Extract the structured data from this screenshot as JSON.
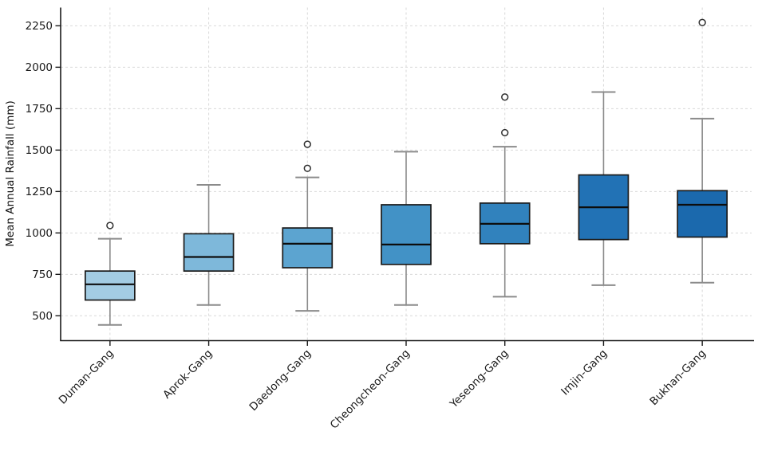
{
  "chart_data": {
    "type": "boxplot",
    "title": "",
    "xlabel": "",
    "ylabel": "Mean Annual Rainfall (mm)",
    "yticks": [
      500,
      750,
      1000,
      1250,
      1500,
      1750,
      2000,
      2250
    ],
    "ylim": [
      350,
      2360
    ],
    "grid": {
      "visible": true,
      "style": "dashed",
      "axes": "both"
    },
    "legend": null,
    "categories": [
      "Duman-Gang",
      "Aprok-Gang",
      "Daedong-Gang",
      "Cheongcheon-Gang",
      "Yeseong-Gang",
      "Imjin-Gang",
      "Bukhan-Gang"
    ],
    "boxes": [
      {
        "category": "Duman-Gang",
        "whisker_low": 445,
        "q1": 595,
        "median": 690,
        "q3": 770,
        "whisker_high": 965,
        "outliers": [
          1045
        ],
        "fill": "#a3cce3"
      },
      {
        "category": "Aprok-Gang",
        "whisker_low": 565,
        "q1": 770,
        "median": 855,
        "q3": 995,
        "whisker_high": 1290,
        "outliers": [],
        "fill": "#7eb8da"
      },
      {
        "category": "Daedong-Gang",
        "whisker_low": 530,
        "q1": 790,
        "median": 935,
        "q3": 1030,
        "whisker_high": 1335,
        "outliers": [
          1390,
          1535
        ],
        "fill": "#5ca4d0"
      },
      {
        "category": "Cheongcheon-Gang",
        "whisker_low": 565,
        "q1": 810,
        "median": 930,
        "q3": 1170,
        "whisker_high": 1490,
        "outliers": [],
        "fill": "#4292c6"
      },
      {
        "category": "Yeseong-Gang",
        "whisker_low": 615,
        "q1": 935,
        "median": 1055,
        "q3": 1180,
        "whisker_high": 1520,
        "outliers": [
          1605,
          1820
        ],
        "fill": "#3182bd"
      },
      {
        "category": "Imjin-Gang",
        "whisker_low": 685,
        "q1": 960,
        "median": 1155,
        "q3": 1350,
        "whisker_high": 1850,
        "outliers": [],
        "fill": "#2272b5"
      },
      {
        "category": "Bukhan-Gang",
        "whisker_low": 700,
        "q1": 975,
        "median": 1170,
        "q3": 1255,
        "whisker_high": 1690,
        "outliers": [
          2270
        ],
        "fill": "#1b69ad"
      }
    ],
    "colors": {
      "background": "#ffffff",
      "grid": "#d9d9d9",
      "axis": "#1a1a1a",
      "tick_text": "#1a1a1a",
      "whisker": "#8b8b8b",
      "median": "#0d0d0d",
      "box_edge": "#1a1a1a",
      "outlier_stroke": "#2e2e2e",
      "outlier_fill": "#ffffff"
    }
  }
}
